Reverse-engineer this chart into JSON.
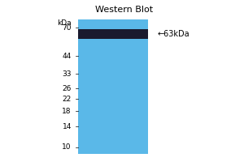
{
  "title": "Western Blot",
  "bg_color": "#ffffff",
  "lane_color": "#5ab8e8",
  "band_color": "#1a1a2e",
  "band_label": "←63kDa",
  "kda_label": "kDa",
  "marker_labels": [
    70,
    44,
    33,
    26,
    22,
    18,
    14,
    10
  ],
  "title_fontsize": 8,
  "marker_fontsize": 6.5,
  "band_label_fontsize": 7
}
